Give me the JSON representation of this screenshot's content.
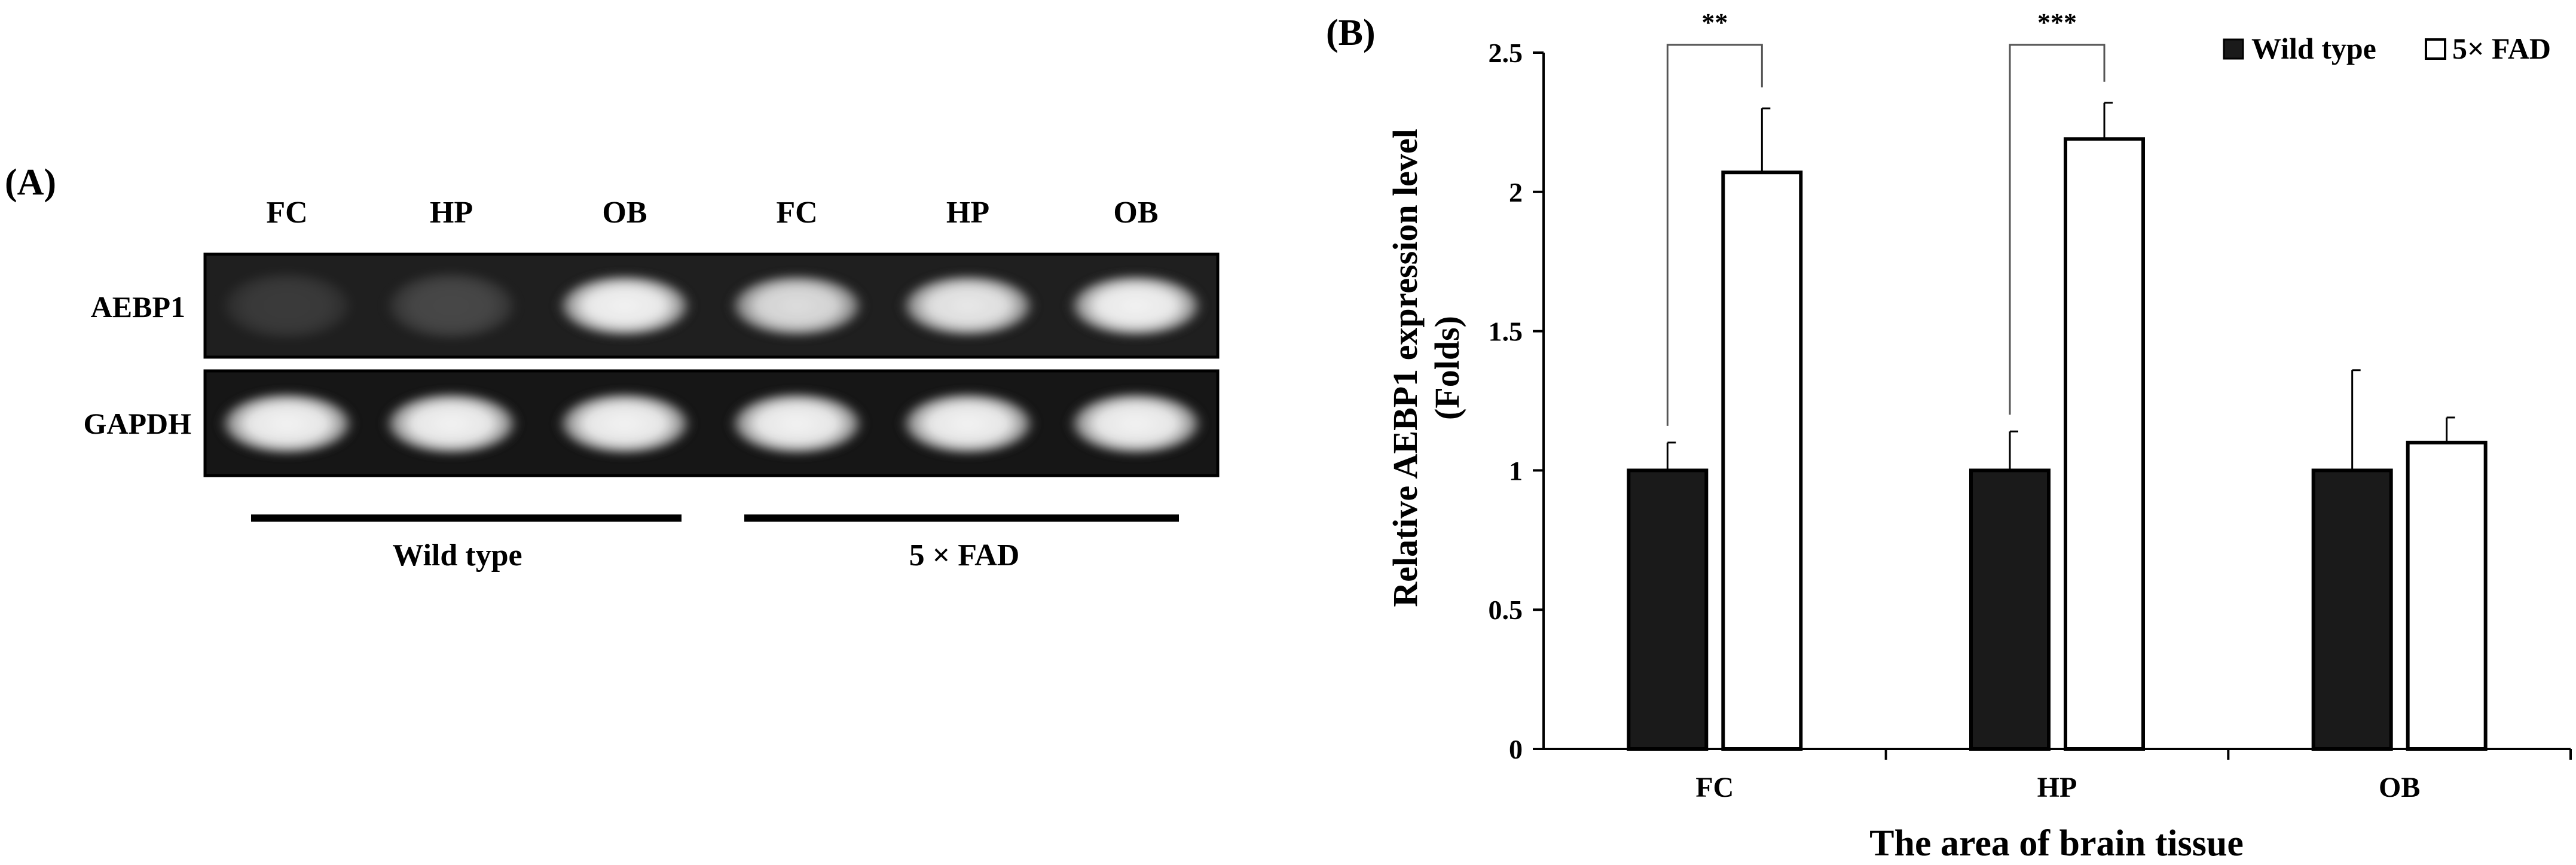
{
  "panel_a": {
    "label": "(A)",
    "lane_labels": [
      "FC",
      "HP",
      "OB",
      "FC",
      "HP",
      "OB"
    ],
    "row_labels": [
      "AEBP1",
      "GAPDH"
    ],
    "group_labels": [
      "Wild type",
      "5 × FAD"
    ],
    "aebp1_band_intensity": [
      0.12,
      0.18,
      0.95,
      0.85,
      0.9,
      0.95
    ],
    "gapdh_band_intensity": [
      0.95,
      0.95,
      0.95,
      0.95,
      0.95,
      0.95
    ]
  },
  "panel_b": {
    "label": "(B)"
  },
  "chart_data": {
    "type": "bar",
    "categories": [
      "FC",
      "HP",
      "OB"
    ],
    "series": [
      {
        "name": "Wild type",
        "values": [
          1.0,
          1.0,
          1.0
        ],
        "errors": [
          0.1,
          0.14,
          0.36
        ],
        "color": "#1a1a1a"
      },
      {
        "name": "5× FAD",
        "values": [
          2.07,
          2.19,
          1.1
        ],
        "errors": [
          0.23,
          0.13,
          0.09
        ],
        "color": "#ffffff"
      }
    ],
    "significance": [
      {
        "category": "FC",
        "label": "**"
      },
      {
        "category": "HP",
        "label": "***"
      }
    ],
    "xlabel": "The area of brain tissue",
    "ylabel_line1": "Relative AEBP1 expression level",
    "ylabel_line2": "(Folds)",
    "ylim": [
      0,
      2.5
    ],
    "yticks": [
      0,
      0.5,
      1,
      1.5,
      2,
      2.5
    ],
    "ytick_labels": [
      "0",
      "0.5",
      "1",
      "1.5",
      "2",
      "2.5"
    ],
    "grid": false,
    "legend_position": "top-right"
  }
}
